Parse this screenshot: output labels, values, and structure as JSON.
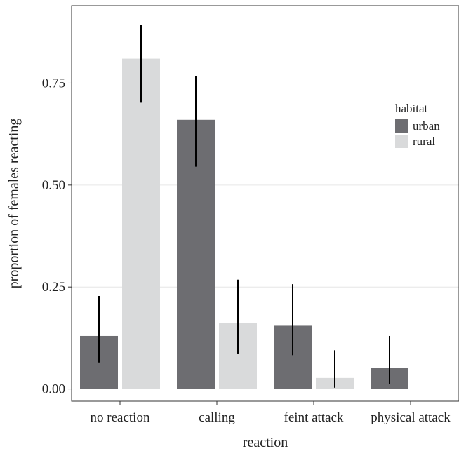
{
  "chart_data": {
    "type": "bar",
    "xlabel": "reaction",
    "ylabel": "proportion of females reacting",
    "categories": [
      "no reaction",
      "calling",
      "feint attack",
      "physical attack"
    ],
    "ylim": [
      -0.03,
      0.94
    ],
    "yticks": [
      0.0,
      0.25,
      0.5,
      0.75
    ],
    "ytick_labels": [
      "0.00",
      "0.25",
      "0.50",
      "0.75"
    ],
    "grid": true,
    "legend": {
      "title": "habitat",
      "position": "right",
      "entries": [
        "urban",
        "rural"
      ]
    },
    "series": [
      {
        "name": "urban",
        "color": "#6d6d71",
        "values": [
          0.13,
          0.66,
          0.155,
          0.052
        ],
        "err_low": [
          0.065,
          0.545,
          0.083,
          0.012
        ],
        "err_high": [
          0.228,
          0.767,
          0.257,
          0.13
        ]
      },
      {
        "name": "rural",
        "color": "#d9dadb",
        "values": [
          0.81,
          0.162,
          0.027,
          null
        ],
        "err_low": [
          0.702,
          0.087,
          0.003,
          null
        ],
        "err_high": [
          0.892,
          0.268,
          0.095,
          null
        ]
      }
    ]
  }
}
